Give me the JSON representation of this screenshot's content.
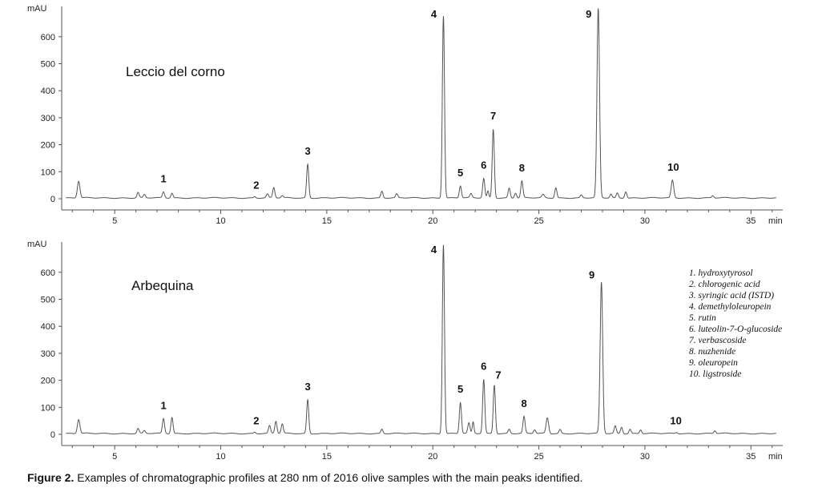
{
  "caption": {
    "label": "Figure 2.",
    "text": " Examples of chromatographic profiles at 280 nm of 2016 olive samples with the main peaks identified."
  },
  "legend": [
    "1. hydroxytyrosol",
    "2. chlorogenic acid",
    "3. syringic acid (ISTD)",
    "4. demethyloleuropein",
    "5. rutin",
    "6. luteolin-7-O-glucoside",
    "7. verbascoside",
    "8. nuzhenide",
    "9. oleuropein",
    "10. ligstroside"
  ],
  "chart_data": [
    {
      "type": "line",
      "title": "Leccio del corno",
      "ylabel": "mAU",
      "xlabel": "min",
      "xlim": [
        2.5,
        36.5
      ],
      "ylim": [
        -10,
        700
      ],
      "x_ticks": [
        5,
        10,
        15,
        20,
        25,
        30,
        35
      ],
      "y_ticks": [
        0,
        100,
        200,
        300,
        400,
        500,
        600
      ],
      "clipped_peaks": [
        4,
        9
      ],
      "baseline": 3,
      "peaks": [
        {
          "t": 3.3,
          "h": 62,
          "w": 0.06,
          "label": ""
        },
        {
          "t": 6.1,
          "h": 20,
          "w": 0.05,
          "label": ""
        },
        {
          "t": 6.4,
          "h": 12,
          "w": 0.05,
          "label": ""
        },
        {
          "t": 7.3,
          "h": 22,
          "w": 0.05,
          "label": "1"
        },
        {
          "t": 7.7,
          "h": 18,
          "w": 0.05,
          "label": ""
        },
        {
          "t": 11.6,
          "h": 5,
          "w": 0.05,
          "label": "2"
        },
        {
          "t": 12.2,
          "h": 14,
          "w": 0.05,
          "label": ""
        },
        {
          "t": 12.5,
          "h": 38,
          "w": 0.05,
          "label": ""
        },
        {
          "t": 12.9,
          "h": 8,
          "w": 0.05,
          "label": ""
        },
        {
          "t": 14.1,
          "h": 125,
          "w": 0.05,
          "label": "3"
        },
        {
          "t": 17.6,
          "h": 25,
          "w": 0.05,
          "label": ""
        },
        {
          "t": 18.3,
          "h": 14,
          "w": 0.05,
          "label": ""
        },
        {
          "t": 20.5,
          "h": 675,
          "w": 0.05,
          "label": "4"
        },
        {
          "t": 21.3,
          "h": 45,
          "w": 0.05,
          "label": "5"
        },
        {
          "t": 21.8,
          "h": 15,
          "w": 0.05,
          "label": ""
        },
        {
          "t": 22.4,
          "h": 72,
          "w": 0.05,
          "label": "6"
        },
        {
          "t": 22.6,
          "h": 25,
          "w": 0.04,
          "label": ""
        },
        {
          "t": 22.85,
          "h": 255,
          "w": 0.05,
          "label": "7"
        },
        {
          "t": 23.6,
          "h": 36,
          "w": 0.05,
          "label": ""
        },
        {
          "t": 23.9,
          "h": 18,
          "w": 0.05,
          "label": ""
        },
        {
          "t": 24.2,
          "h": 62,
          "w": 0.05,
          "label": "8"
        },
        {
          "t": 25.2,
          "h": 12,
          "w": 0.06,
          "label": ""
        },
        {
          "t": 25.8,
          "h": 38,
          "w": 0.05,
          "label": ""
        },
        {
          "t": 27.0,
          "h": 10,
          "w": 0.05,
          "label": ""
        },
        {
          "t": 27.8,
          "h": 700,
          "w": 0.06,
          "label": "9"
        },
        {
          "t": 28.4,
          "h": 14,
          "w": 0.05,
          "label": ""
        },
        {
          "t": 28.7,
          "h": 18,
          "w": 0.05,
          "label": ""
        },
        {
          "t": 29.1,
          "h": 24,
          "w": 0.05,
          "label": ""
        },
        {
          "t": 31.3,
          "h": 65,
          "w": 0.06,
          "label": "10"
        },
        {
          "t": 33.2,
          "h": 8,
          "w": 0.05,
          "label": ""
        }
      ]
    },
    {
      "type": "line",
      "title": "Arbequina",
      "ylabel": "mAU",
      "xlabel": "min",
      "xlim": [
        2.5,
        36.5
      ],
      "ylim": [
        -10,
        700
      ],
      "x_ticks": [
        5,
        10,
        15,
        20,
        25,
        30,
        35
      ],
      "y_ticks": [
        0,
        100,
        200,
        300,
        400,
        500,
        600
      ],
      "clipped_peaks": [
        4
      ],
      "baseline": 3,
      "peaks": [
        {
          "t": 3.3,
          "h": 52,
          "w": 0.06,
          "label": ""
        },
        {
          "t": 6.1,
          "h": 18,
          "w": 0.05,
          "label": ""
        },
        {
          "t": 6.4,
          "h": 10,
          "w": 0.05,
          "label": ""
        },
        {
          "t": 7.3,
          "h": 55,
          "w": 0.05,
          "label": "1"
        },
        {
          "t": 7.7,
          "h": 60,
          "w": 0.05,
          "label": ""
        },
        {
          "t": 11.6,
          "h": 5,
          "w": 0.05,
          "label": "2"
        },
        {
          "t": 12.3,
          "h": 28,
          "w": 0.05,
          "label": ""
        },
        {
          "t": 12.6,
          "h": 45,
          "w": 0.05,
          "label": ""
        },
        {
          "t": 12.9,
          "h": 35,
          "w": 0.05,
          "label": ""
        },
        {
          "t": 14.1,
          "h": 125,
          "w": 0.05,
          "label": "3"
        },
        {
          "t": 17.6,
          "h": 16,
          "w": 0.05,
          "label": ""
        },
        {
          "t": 20.5,
          "h": 700,
          "w": 0.05,
          "label": "4"
        },
        {
          "t": 21.3,
          "h": 115,
          "w": 0.05,
          "label": "5"
        },
        {
          "t": 21.7,
          "h": 38,
          "w": 0.05,
          "label": ""
        },
        {
          "t": 21.9,
          "h": 42,
          "w": 0.04,
          "label": ""
        },
        {
          "t": 22.4,
          "h": 200,
          "w": 0.05,
          "label": "6"
        },
        {
          "t": 22.9,
          "h": 180,
          "w": 0.05,
          "label": "7"
        },
        {
          "t": 23.6,
          "h": 16,
          "w": 0.05,
          "label": ""
        },
        {
          "t": 24.3,
          "h": 62,
          "w": 0.05,
          "label": "8"
        },
        {
          "t": 24.8,
          "h": 14,
          "w": 0.05,
          "label": ""
        },
        {
          "t": 25.4,
          "h": 58,
          "w": 0.06,
          "label": ""
        },
        {
          "t": 26.0,
          "h": 15,
          "w": 0.05,
          "label": ""
        },
        {
          "t": 27.95,
          "h": 560,
          "w": 0.06,
          "label": "9"
        },
        {
          "t": 28.6,
          "h": 28,
          "w": 0.05,
          "label": ""
        },
        {
          "t": 28.9,
          "h": 24,
          "w": 0.05,
          "label": ""
        },
        {
          "t": 29.3,
          "h": 16,
          "w": 0.05,
          "label": ""
        },
        {
          "t": 29.8,
          "h": 14,
          "w": 0.05,
          "label": ""
        },
        {
          "t": 31.5,
          "h": 4,
          "w": 0.05,
          "label": "10"
        },
        {
          "t": 33.3,
          "h": 10,
          "w": 0.05,
          "label": ""
        }
      ]
    }
  ]
}
